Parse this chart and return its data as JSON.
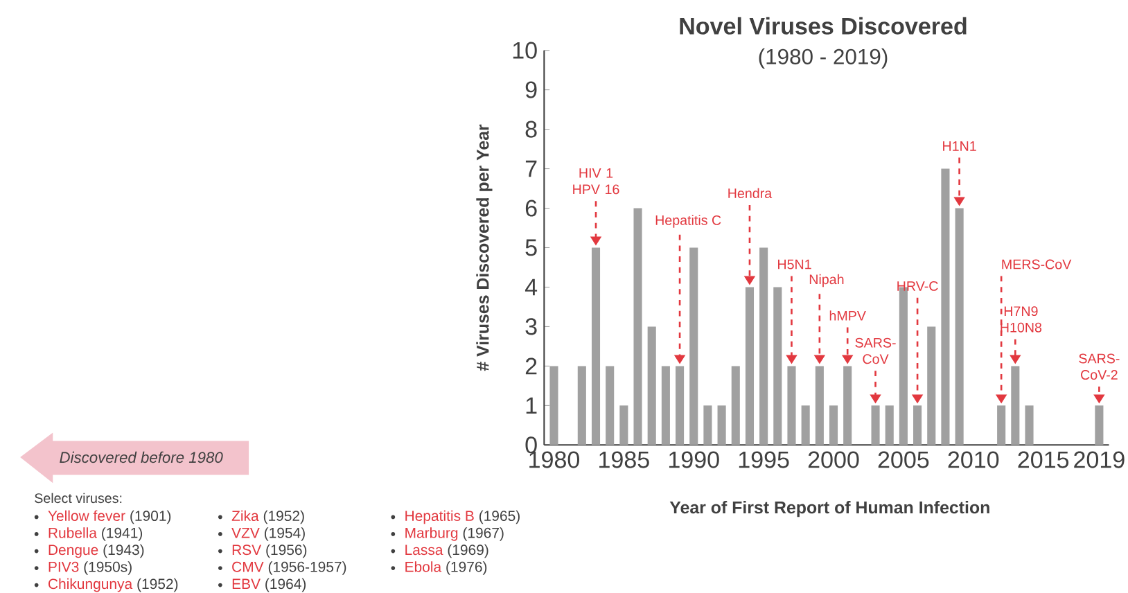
{
  "chart_data": {
    "type": "bar",
    "title": "Novel Viruses Discovered",
    "subtitle": "(1980 - 2019)",
    "xlabel": "Year of First Report of Human Infection",
    "ylabel": "# Viruses Discovered per Year",
    "x": [
      1980,
      1981,
      1982,
      1983,
      1984,
      1985,
      1986,
      1987,
      1988,
      1989,
      1990,
      1991,
      1992,
      1993,
      1994,
      1995,
      1996,
      1997,
      1998,
      1999,
      2000,
      2001,
      2002,
      2003,
      2004,
      2005,
      2006,
      2007,
      2008,
      2009,
      2010,
      2011,
      2012,
      2013,
      2014,
      2015,
      2016,
      2017,
      2018,
      2019
    ],
    "values": [
      2,
      0,
      2,
      5,
      2,
      1,
      6,
      3,
      2,
      2,
      5,
      1,
      1,
      2,
      4,
      5,
      4,
      2,
      1,
      2,
      1,
      2,
      0,
      1,
      1,
      4,
      1,
      3,
      7,
      6,
      0,
      0,
      1,
      2,
      1,
      0,
      0,
      0,
      0,
      1
    ],
    "color": "#a0a0a0",
    "xlim": [
      1979.3,
      2019.7
    ],
    "xticks": [
      1980,
      1985,
      1990,
      1995,
      2000,
      2005,
      2010,
      2015,
      2019
    ],
    "ylim": [
      0,
      10
    ],
    "yticks": [
      0,
      1,
      2,
      3,
      4,
      5,
      6,
      7,
      8,
      9,
      10
    ],
    "annotations": [
      {
        "text": "HIV 1 HPV 16",
        "x": 1983,
        "y": 5
      },
      {
        "text": "Hepatitis C",
        "x": 1989,
        "y": 2
      },
      {
        "text": "Hendra",
        "x": 1994,
        "y": 4
      },
      {
        "text": "H5N1",
        "x": 1997,
        "y": 2
      },
      {
        "text": "Nipah",
        "x": 1999,
        "y": 2
      },
      {
        "text": "hMPV",
        "x": 2001,
        "y": 2
      },
      {
        "text": "SARS-CoV",
        "x": 2003,
        "y": 1
      },
      {
        "text": "HRV-C",
        "x": 2006,
        "y": 1
      },
      {
        "text": "H1N1",
        "x": 2009,
        "y": 6
      },
      {
        "text": "MERS-CoV",
        "x": 2012,
        "y": 1
      },
      {
        "text": "H7N9 H10N8",
        "x": 2013,
        "y": 2
      },
      {
        "text": "SARS-CoV-2",
        "x": 2019,
        "y": 1
      },
      "Discovered before 1980",
      "Select viruses:",
      "Yellow fever",
      "(1901)",
      "Rubella",
      "(1941)",
      "Dengue",
      "(1943)",
      "PIV3",
      "(1950s)",
      "Chikungunya",
      "(1952)",
      "Zika",
      "(1952)",
      "VZV",
      "(1954)",
      "RSV",
      "(1956)",
      "CMV",
      "(1956-1957)",
      "EBV",
      "(1964)",
      "Hepatitis B",
      "(1965)",
      "Marburg",
      "(1967)",
      "Lassa",
      "(1969)",
      "Ebola",
      "(1976)"
    ]
  }
}
